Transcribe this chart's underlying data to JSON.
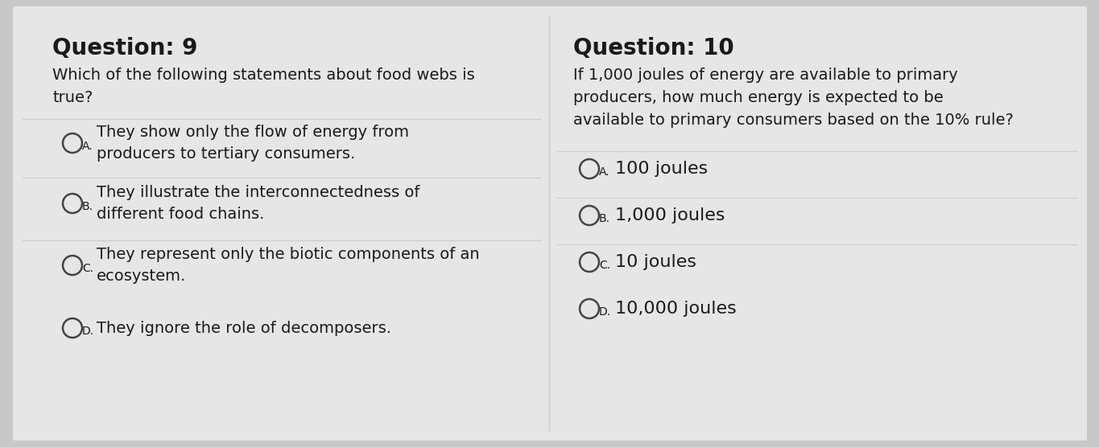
{
  "bg_color": "#c8c8c8",
  "panel_color": "#e8e8e8",
  "title_q9": "Question: 9",
  "title_q10": "Question: 10",
  "q9_prompt": "Which of the following statements about food webs is\ntrue?",
  "q9_options": [
    {
      "label": "A.",
      "text": "They show only the flow of energy from\nproducers to tertiary consumers."
    },
    {
      "label": "B.",
      "text": "They illustrate the interconnectedness of\ndifferent food chains."
    },
    {
      "label": "C.",
      "text": "They represent only the biotic components of an\necosystem."
    },
    {
      "label": "D.",
      "text": "They ignore the role of decomposers."
    }
  ],
  "q10_prompt": "If 1,000 joules of energy are available to primary\nproducers, how much energy is expected to be\navailable to primary consumers based on the 10% rule?",
  "q10_options": [
    {
      "label": "A.",
      "text": "100 joules"
    },
    {
      "label": "B.",
      "text": "1,000 joules"
    },
    {
      "label": "C.",
      "text": "10 joules"
    },
    {
      "label": "D.",
      "text": "10,000 joules"
    }
  ],
  "title_fontsize": 20,
  "prompt_fontsize": 14,
  "option_fontsize": 14,
  "label_fontsize": 10,
  "text_color": "#1a1a1a",
  "divider_color": "#cccccc",
  "circle_color": "#444444"
}
